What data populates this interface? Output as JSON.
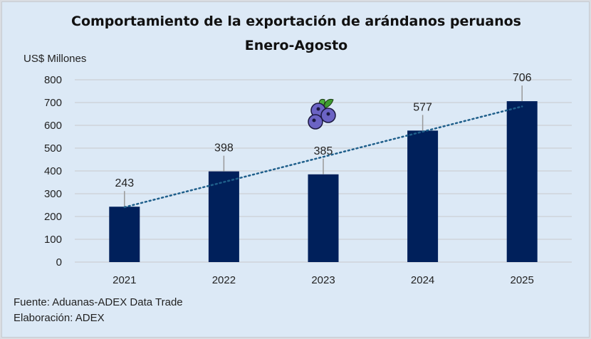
{
  "chart_data": {
    "type": "bar",
    "title": "Comportamiento de la exportación de arándanos peruanos",
    "subtitle": "Enero-Agosto",
    "ylabel": "US$ Millones",
    "xlabel": "",
    "categories": [
      "2021",
      "2022",
      "2023",
      "2024",
      "2025"
    ],
    "values": [
      243,
      398,
      385,
      577,
      706
    ],
    "ylim": [
      0,
      800
    ],
    "yticks": [
      0,
      100,
      200,
      300,
      400,
      500,
      600,
      700,
      800
    ],
    "grid": true,
    "trendline": {
      "type": "linear",
      "style": "dotted"
    },
    "colors": {
      "bar": "#00205b",
      "trend": "#1f5f8b",
      "grid": "#cfd4da",
      "background": "#dce9f6"
    },
    "decoration": "blueberry-icon",
    "notes": [
      "Fuente: Aduanas-ADEX Data Trade",
      "Elaboración: ADEX"
    ]
  }
}
